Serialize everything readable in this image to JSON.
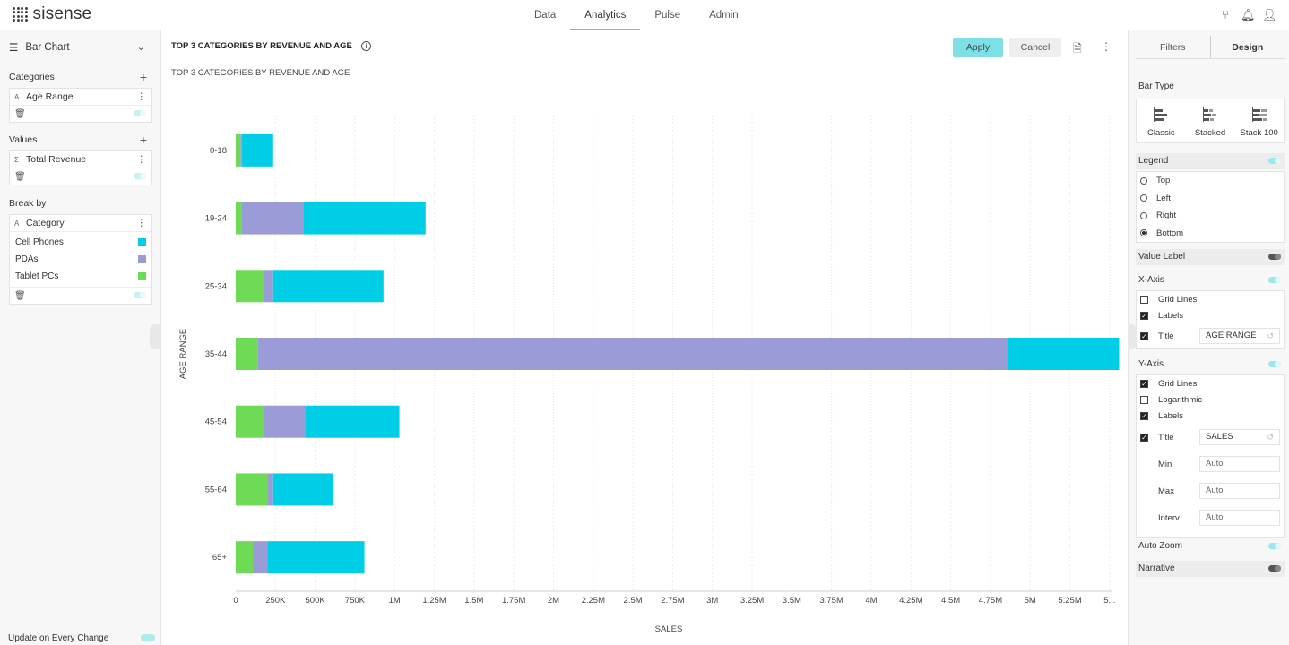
{
  "app": {
    "logo_text": "sisense"
  },
  "nav": {
    "items": [
      "Data",
      "Analytics",
      "Pulse",
      "Admin"
    ],
    "active": "Analytics"
  },
  "left": {
    "chart_type": "Bar Chart",
    "categories": {
      "title": "Categories",
      "field": "Age Range",
      "field_type": "A"
    },
    "values": {
      "title": "Values",
      "field": "Total Revenue",
      "field_type": "Σ"
    },
    "breakby": {
      "title": "Break by",
      "field": "Category",
      "field_type": "A",
      "members": [
        {
          "label": "Cell Phones",
          "color": "#00cee6"
        },
        {
          "label": "PDAs",
          "color": "#9b9bd7"
        },
        {
          "label": "Tablet PCs",
          "color": "#6eda55"
        }
      ]
    },
    "update_label": "Update on Every Change"
  },
  "header": {
    "title": "TOP 3 CATEGORIES BY REVENUE AND AGE",
    "apply": "Apply",
    "cancel": "Cancel"
  },
  "chart_data": {
    "type": "bar",
    "orientation": "horizontal",
    "stacked": true,
    "subtitle": "TOP 3 CATEGORIES BY REVENUE AND AGE",
    "categories": [
      "0-18",
      "19-24",
      "25-34",
      "35-44",
      "45-54",
      "55-64",
      "65+"
    ],
    "series": [
      {
        "name": "Tablet PCs",
        "color": "#6eda55",
        "values": [
          30000,
          35000,
          170000,
          140000,
          180000,
          200000,
          110000
        ]
      },
      {
        "name": "PDAs",
        "color": "#9b9bd7",
        "values": [
          10000,
          390000,
          60000,
          4720000,
          260000,
          30000,
          90000
        ]
      },
      {
        "name": "Cell Phones",
        "color": "#00cee6",
        "values": [
          190000,
          770000,
          700000,
          700000,
          590000,
          380000,
          610000
        ]
      }
    ],
    "xlabel": "SALES",
    "ylabel": "AGE RANGE",
    "xlim": [
      0,
      5450000
    ],
    "x_ticks": [
      "0",
      "250K",
      "500K",
      "750K",
      "1M",
      "1.25M",
      "1.5M",
      "1.75M",
      "2M",
      "2.25M",
      "2.5M",
      "2.75M",
      "3M",
      "3.25M",
      "3.5M",
      "3.75M",
      "4M",
      "4.25M",
      "4.5M",
      "4.75M",
      "5M",
      "5.25M",
      "5..."
    ],
    "grid": "vertical",
    "legend": "bottom",
    "legend_items": [
      "Cell Phones",
      "PDAs",
      "Tablet PCs"
    ]
  },
  "right": {
    "tabs": [
      "Filters",
      "Design"
    ],
    "active_tab": "Design",
    "bar_type": {
      "label": "Bar Type",
      "options": [
        "Classic",
        "Stacked",
        "Stack 100"
      ]
    },
    "legend": {
      "label": "Legend",
      "options": [
        "Top",
        "Left",
        "Right",
        "Bottom"
      ],
      "selected": "Bottom"
    },
    "value_label": "Value Label",
    "xaxis": {
      "label": "X-Axis",
      "grid": "Grid Lines",
      "labels": "Labels",
      "title": "Title",
      "title_value": "AGE RANGE"
    },
    "yaxis": {
      "label": "Y-Axis",
      "grid": "Grid Lines",
      "log": "Logarithmic",
      "labels": "Labels",
      "title": "Title",
      "title_value": "SALES",
      "min": "Min",
      "max": "Max",
      "interval": "Interv...",
      "auto": "Auto"
    },
    "auto_zoom": "Auto Zoom",
    "narrative": "Narrative"
  }
}
